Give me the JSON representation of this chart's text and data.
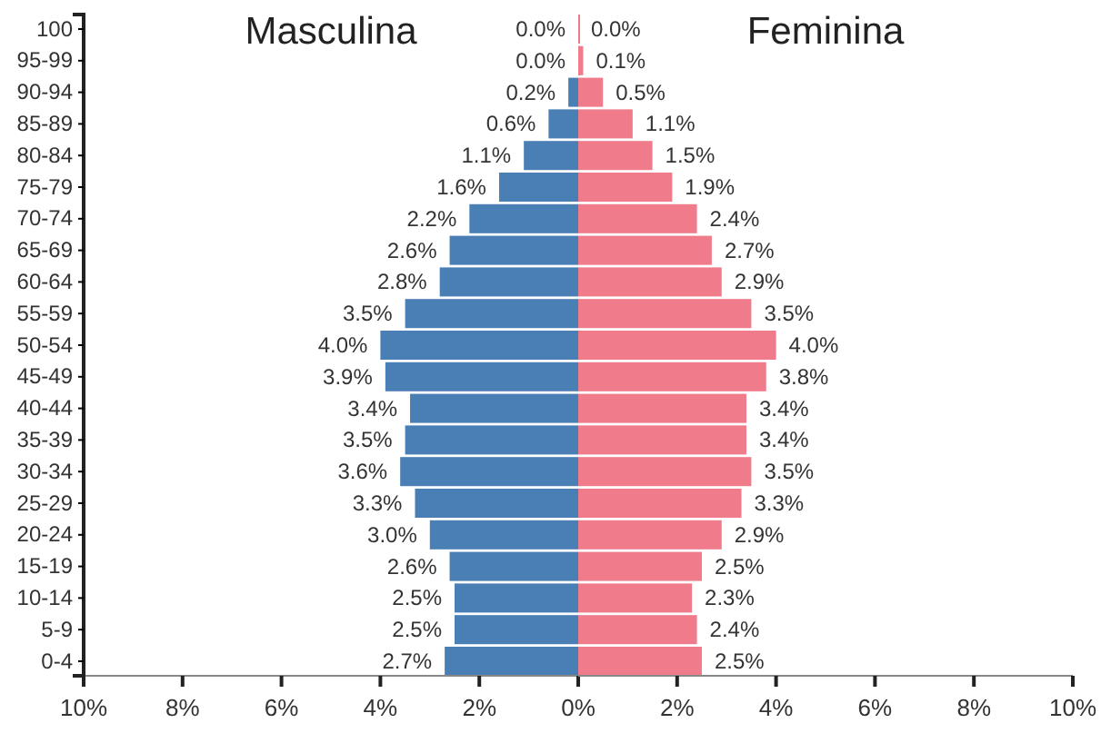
{
  "chart_data": [
    {
      "type": "bar",
      "orientation": "horizontal",
      "legend": false,
      "grid": false,
      "title": "Masculina",
      "categories": [
        "100",
        "95-99",
        "90-94",
        "85-89",
        "80-84",
        "75-79",
        "70-74",
        "65-69",
        "60-64",
        "55-59",
        "50-54",
        "45-49",
        "40-44",
        "35-39",
        "30-34",
        "25-29",
        "20-24",
        "15-19",
        "10-14",
        "5-9",
        "0-4"
      ],
      "xlim": [
        10,
        0
      ],
      "xticks": [
        {
          "value": 10,
          "label": "10%"
        },
        {
          "value": 8,
          "label": "8%"
        },
        {
          "value": 6,
          "label": "6%"
        },
        {
          "value": 4,
          "label": "4%"
        },
        {
          "value": 2,
          "label": "2%"
        },
        {
          "value": 0,
          "label": "0%"
        }
      ],
      "series": [
        {
          "color": "#4a7fb5",
          "values": [
            0.0,
            0.0,
            0.2,
            0.6,
            1.1,
            1.6,
            2.2,
            2.6,
            2.8,
            3.5,
            4.0,
            3.9,
            3.4,
            3.5,
            3.6,
            3.3,
            3.0,
            2.6,
            2.5,
            2.5,
            2.7
          ],
          "value_labels": [
            "0.0%",
            "0.0%",
            "0.2%",
            "0.6%",
            "1.1%",
            "1.6%",
            "2.2%",
            "2.6%",
            "2.8%",
            "3.5%",
            "4.0%",
            "3.9%",
            "3.4%",
            "3.5%",
            "3.6%",
            "3.3%",
            "3.0%",
            "2.6%",
            "2.5%",
            "2.5%",
            "2.7%"
          ]
        }
      ]
    },
    {
      "type": "bar",
      "orientation": "horizontal",
      "legend": false,
      "grid": false,
      "title": "Feminina",
      "categories": [
        null,
        null,
        null,
        null,
        null,
        null,
        null,
        null,
        null,
        null,
        null,
        null,
        null,
        null,
        null,
        null,
        null,
        null,
        null,
        null,
        null
      ],
      "xlim": [
        0,
        10
      ],
      "xticks": [
        {
          "value": 2,
          "label": "2%"
        },
        {
          "value": 4,
          "label": "4%"
        },
        {
          "value": 6,
          "label": "6%"
        },
        {
          "value": 8,
          "label": "8%"
        },
        {
          "value": 10,
          "label": "10%"
        }
      ],
      "series": [
        {
          "color": "#ef7b8b",
          "values": [
            0.0,
            0.1,
            0.5,
            1.1,
            1.5,
            1.9,
            2.4,
            2.7,
            2.9,
            3.5,
            4.0,
            3.8,
            3.4,
            3.4,
            3.5,
            3.3,
            2.9,
            2.5,
            2.3,
            2.4,
            2.5
          ],
          "value_labels": [
            "0.0%",
            "0.1%",
            "0.5%",
            "1.1%",
            "1.5%",
            "1.9%",
            "2.4%",
            "2.7%",
            "2.9%",
            "3.5%",
            "4.0%",
            "3.8%",
            "3.4%",
            "3.4%",
            "3.5%",
            "3.3%",
            "2.9%",
            "2.5%",
            "2.3%",
            "2.4%",
            "2.5%"
          ]
        }
      ]
    }
  ]
}
